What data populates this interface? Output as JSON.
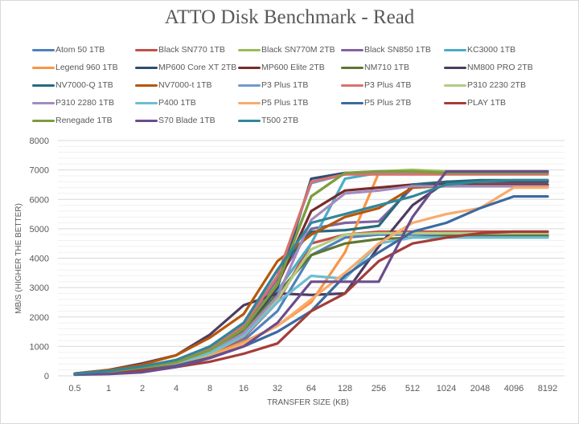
{
  "chart_data": {
    "type": "line",
    "title": "ATTO Disk Benchmark - Read",
    "xlabel": "TRANSFER SIZE (KB)",
    "ylabel": "MB/S (HIGHER THE BETTER)",
    "ylim": [
      0,
      8000
    ],
    "yticks": [
      "0",
      "1000",
      "2000",
      "3000",
      "4000",
      "5000",
      "6000",
      "7000",
      "8000"
    ],
    "grid": true,
    "minor_grid": true,
    "legend_position": "top",
    "categories": [
      "0.5",
      "1",
      "2",
      "4",
      "8",
      "16",
      "32",
      "64",
      "128",
      "256",
      "512",
      "1024",
      "2048",
      "4096",
      "8192"
    ],
    "series": [
      {
        "name": "Atom 50 1TB",
        "color": "#4f81bd",
        "values": [
          60,
          120,
          230,
          380,
          700,
          1200,
          2200,
          4100,
          4700,
          4800,
          4800,
          4800,
          4800,
          4800,
          4800
        ]
      },
      {
        "name": "Black SN770 1TB",
        "color": "#c0504d",
        "values": [
          60,
          130,
          250,
          400,
          750,
          1300,
          2500,
          4500,
          4800,
          4900,
          4900,
          4900,
          4900,
          4900,
          4900
        ]
      },
      {
        "name": "Black SN770M 2TB",
        "color": "#9bbb59",
        "values": [
          60,
          140,
          280,
          450,
          850,
          1600,
          3200,
          6100,
          6900,
          6950,
          7000,
          6950,
          6950,
          6950,
          6950
        ]
      },
      {
        "name": "Black SN850 1TB",
        "color": "#8064a2",
        "values": [
          70,
          150,
          300,
          500,
          950,
          1700,
          3300,
          5000,
          5200,
          5250,
          6400,
          6500,
          6500,
          6500,
          6500
        ]
      },
      {
        "name": "KC3000 1TB",
        "color": "#4bacc6",
        "values": [
          60,
          140,
          270,
          450,
          850,
          1550,
          2900,
          4500,
          6700,
          6900,
          6900,
          6900,
          6900,
          6900,
          6900
        ]
      },
      {
        "name": "Legend 960 1TB",
        "color": "#f79646",
        "values": [
          50,
          110,
          220,
          380,
          700,
          1150,
          1700,
          2500,
          4200,
          6900,
          6900,
          6900,
          6900,
          6900,
          6900
        ]
      },
      {
        "name": "MP600 Core XT 2TB",
        "color": "#2c4d75",
        "values": [
          60,
          130,
          260,
          430,
          800,
          1500,
          3000,
          6700,
          6900,
          6900,
          6900,
          6900,
          6900,
          6900,
          6900
        ]
      },
      {
        "name": "MP600 Elite 2TB",
        "color": "#772c2a",
        "values": [
          60,
          140,
          270,
          450,
          850,
          1600,
          3100,
          5600,
          6300,
          6400,
          6500,
          6500,
          6500,
          6500,
          6500
        ]
      },
      {
        "name": "NM710 1TB",
        "color": "#5f7530",
        "values": [
          60,
          130,
          260,
          420,
          800,
          1500,
          2800,
          4100,
          4500,
          4650,
          4700,
          4750,
          4750,
          4750,
          4750
        ]
      },
      {
        "name": "NM800 PRO 2TB",
        "color": "#4d3b62",
        "values": [
          80,
          200,
          420,
          700,
          1400,
          2400,
          2800,
          2750,
          2800,
          4400,
          5800,
          6600,
          6600,
          6600,
          6600
        ]
      },
      {
        "name": "NV7000-Q 1TB",
        "color": "#276a7c",
        "values": [
          70,
          150,
          310,
          520,
          980,
          1800,
          3600,
          4900,
          4950,
          5100,
          6500,
          6600,
          6650,
          6650,
          6650
        ]
      },
      {
        "name": "NV7000-t 1TB",
        "color": "#b65708",
        "values": [
          80,
          190,
          380,
          700,
          1300,
          2100,
          3900,
          4800,
          5400,
          5700,
          6400,
          6450,
          6450,
          6450,
          6450
        ]
      },
      {
        "name": "P3 Plus 1TB",
        "color": "#729aca",
        "values": [
          60,
          140,
          290,
          480,
          900,
          1700,
          3400,
          6550,
          6850,
          6900,
          6900,
          6900,
          6900,
          6900,
          6900
        ]
      },
      {
        "name": "P3 Plus 4TB",
        "color": "#d9726e",
        "values": [
          60,
          140,
          290,
          480,
          900,
          1700,
          3400,
          6600,
          6850,
          6850,
          6850,
          6850,
          6850,
          6850,
          6850
        ]
      },
      {
        "name": "P310 2230 2TB",
        "color": "#b3cc82",
        "values": [
          50,
          120,
          240,
          400,
          750,
          1350,
          2600,
          4300,
          4800,
          4850,
          4850,
          4850,
          4850,
          4850,
          4850
        ]
      },
      {
        "name": "P310 2280 1TB",
        "color": "#a28cbf",
        "values": [
          60,
          130,
          260,
          420,
          800,
          1450,
          2700,
          5300,
          6200,
          6300,
          6450,
          6450,
          6450,
          6450,
          6450
        ]
      },
      {
        "name": "P400 1TB",
        "color": "#6fbdd1",
        "values": [
          60,
          120,
          250,
          420,
          780,
          1350,
          2500,
          3400,
          3300,
          4500,
          4700,
          4700,
          4700,
          4700,
          4700
        ]
      },
      {
        "name": "P5 Plus 1TB",
        "color": "#f9ab6b",
        "values": [
          50,
          110,
          220,
          370,
          650,
          1100,
          1700,
          2600,
          3500,
          4500,
          5200,
          5500,
          5700,
          6400,
          6400
        ]
      },
      {
        "name": "P5 Plus 2TB",
        "color": "#3c6aa1",
        "values": [
          50,
          100,
          200,
          350,
          620,
          1000,
          1500,
          2200,
          3400,
          4200,
          4900,
          5200,
          5700,
          6100,
          6100
        ]
      },
      {
        "name": "PLAY 1TB",
        "color": "#a33d3a",
        "values": [
          40,
          90,
          180,
          300,
          480,
          750,
          1100,
          2200,
          2800,
          3900,
          4500,
          4700,
          4850,
          4900,
          4900
        ]
      },
      {
        "name": "Renegade 1TB",
        "color": "#7e9c3e",
        "values": [
          60,
          140,
          280,
          460,
          870,
          1600,
          3100,
          6100,
          6900,
          6950,
          6950,
          6900,
          6900,
          6900,
          6900
        ]
      },
      {
        "name": "S70 Blade 1TB",
        "color": "#6a4e8c",
        "values": [
          40,
          60,
          120,
          300,
          600,
          1000,
          1800,
          3200,
          3200,
          3200,
          5400,
          6950,
          6950,
          6950,
          6950
        ]
      },
      {
        "name": "T500 2TB",
        "color": "#31869b",
        "values": [
          70,
          160,
          320,
          540,
          1000,
          1800,
          3600,
          5200,
          5500,
          5800,
          6100,
          6500,
          6600,
          6650,
          6650
        ]
      }
    ]
  }
}
